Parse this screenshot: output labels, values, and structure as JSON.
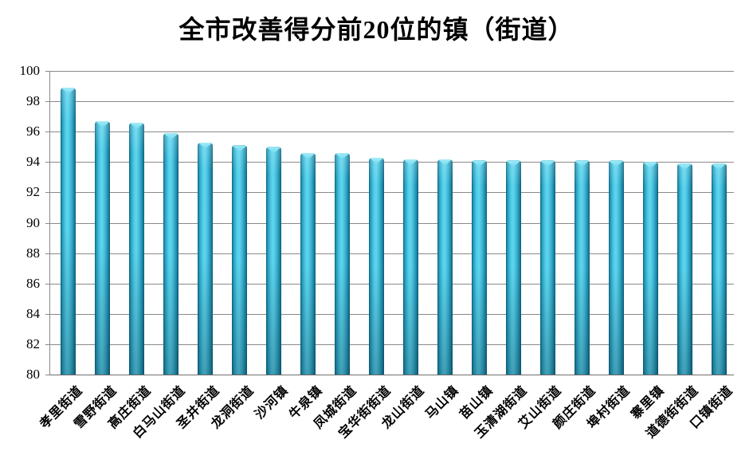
{
  "title": {
    "text": "全市改善得分前20位的镇（街道）"
  },
  "chart_data": {
    "type": "bar",
    "title": "全市改善得分前20位的镇（街道）",
    "categories": [
      "孝里街道",
      "雪野街道",
      "高庄街道",
      "白马山街道",
      "圣井街道",
      "龙洞街道",
      "沙河镇",
      "牛泉镇",
      "凤城街道",
      "宝华街街道",
      "龙山街道",
      "马山镇",
      "苗山镇",
      "玉清湖街道",
      "艾山街道",
      "颜庄街道",
      "埠村街道",
      "寨里镇",
      "道德街街道",
      "口镇街道"
    ],
    "values": [
      98.9,
      96.7,
      96.6,
      95.9,
      95.3,
      95.1,
      95.0,
      94.6,
      94.6,
      94.3,
      94.2,
      94.2,
      94.1,
      94.1,
      94.1,
      94.1,
      94.1,
      94.0,
      93.9,
      93.9
    ],
    "xlabel": "",
    "ylabel": "",
    "ylim": [
      80,
      100
    ],
    "ytick_step": 2,
    "y_tick_labels": [
      "100",
      "98",
      "96",
      "94",
      "92",
      "90",
      "88",
      "86",
      "84",
      "82",
      "80"
    ],
    "grid": "horizontal",
    "legend": "none"
  },
  "colors": {
    "bar_body": "#45c6e2",
    "bar_edge_dark": "#0e6d8a",
    "bar_cap_light": "#8fe6f5",
    "gridline": "#8a8a8a",
    "axis_line": "#6e6e6e",
    "text": "#000000",
    "background": "#ffffff"
  }
}
